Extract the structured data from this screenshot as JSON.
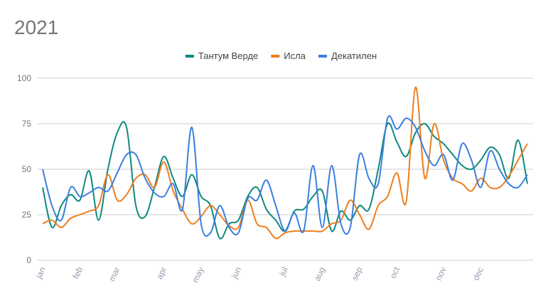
{
  "chart_data": {
    "type": "line",
    "title": "2021",
    "categories": [
      "jan",
      null,
      null,
      null,
      "feb",
      null,
      null,
      null,
      "mar",
      null,
      null,
      null,
      null,
      "apr",
      null,
      null,
      null,
      "may",
      null,
      null,
      null,
      "jun",
      null,
      null,
      null,
      null,
      "jul",
      null,
      null,
      null,
      "aug",
      null,
      null,
      null,
      "sep",
      null,
      null,
      null,
      "oct",
      null,
      null,
      null,
      null,
      "nov",
      null,
      null,
      null,
      "dec",
      null,
      null,
      null,
      null,
      null
    ],
    "series": [
      {
        "name": "Тантум Верде",
        "color": "#0e8a7e",
        "values": [
          40,
          18,
          30,
          36,
          33,
          49,
          22,
          50,
          70,
          73,
          30,
          24,
          40,
          57,
          45,
          35,
          47,
          35,
          30,
          12,
          20,
          22,
          35,
          40,
          28,
          22,
          16,
          27,
          28,
          35,
          38,
          16,
          27,
          22,
          30,
          28,
          50,
          75,
          65,
          57,
          70,
          75,
          68,
          64,
          58,
          52,
          50,
          55,
          62,
          58,
          45,
          66,
          42
        ]
      },
      {
        "name": "Исла",
        "color": "#ee7f1e",
        "values": [
          20,
          22,
          18,
          23,
          25,
          27,
          30,
          47,
          33,
          36,
          45,
          47,
          40,
          54,
          38,
          28,
          20,
          24,
          30,
          25,
          19,
          18,
          33,
          20,
          18,
          12,
          15,
          16,
          16,
          16,
          16,
          20,
          22,
          33,
          25,
          17,
          30,
          35,
          48,
          32,
          95,
          45,
          75,
          55,
          45,
          42,
          38,
          45,
          40,
          40,
          46,
          55,
          64
        ]
      },
      {
        "name": "Декатилен",
        "color": "#3a7fe0",
        "values": [
          50,
          30,
          22,
          40,
          35,
          37,
          40,
          38,
          48,
          58,
          58,
          45,
          37,
          35,
          42,
          28,
          73,
          20,
          15,
          30,
          18,
          15,
          34,
          33,
          44,
          30,
          16,
          26,
          16,
          52,
          18,
          52,
          20,
          18,
          58,
          45,
          42,
          78,
          72,
          78,
          73,
          60,
          52,
          58,
          44,
          64,
          55,
          40,
          60,
          50,
          42,
          40,
          47
        ]
      }
    ],
    "ylim": [
      0,
      100
    ],
    "yticks": [
      0,
      25,
      50,
      75,
      100
    ],
    "grid": true
  }
}
